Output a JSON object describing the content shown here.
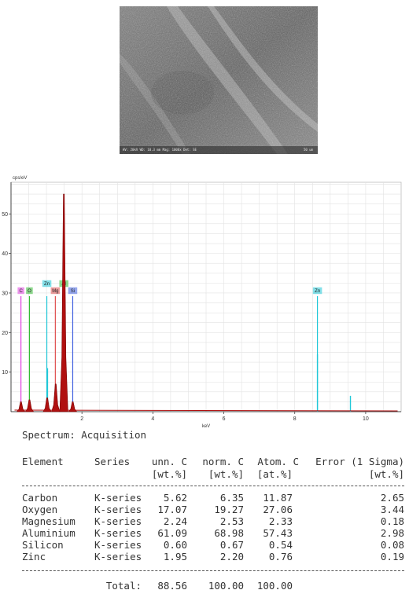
{
  "sem_image": {
    "info_text": "HV: 20kV  WD: 10.3 mm  Mag: 1000x  Det: SE",
    "scale_text": "50 um"
  },
  "chart_data": {
    "type": "line",
    "title": "",
    "ylabel": "cps/eV",
    "xlabel": "keV",
    "xlim": [
      0,
      11
    ],
    "ylim": [
      0,
      58
    ],
    "x_ticks": [
      "2",
      "4",
      "6",
      "8",
      "10"
    ],
    "y_ticks": [
      "10",
      "20",
      "30",
      "40",
      "50"
    ],
    "grid": true,
    "colors": {
      "spectrum": "#b01010",
      "zn": "#20c8d8",
      "o": "#33bb33",
      "c": "#e040e0",
      "mg": "#e05050",
      "al": "#33bb33",
      "si": "#4060e0"
    },
    "peaks": [
      {
        "x": 0.28,
        "y": 2.5
      },
      {
        "x": 0.52,
        "y": 3.0
      },
      {
        "x": 1.02,
        "y": 3.5
      },
      {
        "x": 1.26,
        "y": 7.0
      },
      {
        "x": 1.49,
        "y": 55.0
      },
      {
        "x": 1.74,
        "y": 2.5
      }
    ],
    "element_markers": [
      {
        "label": "C",
        "x": 0.28,
        "color": "#e040e0",
        "height": 30
      },
      {
        "label": "O",
        "x": 0.52,
        "color": "#33bb33",
        "height": 30
      },
      {
        "label": "Zn",
        "x": 1.01,
        "color": "#20c8d8",
        "height": 30
      },
      {
        "label": "Mg",
        "x": 1.25,
        "color": "#e05050",
        "height": 30
      },
      {
        "label": "Al",
        "x": 1.49,
        "color": "#33bb33",
        "height": 30
      },
      {
        "label": "Si",
        "x": 1.74,
        "color": "#4060e0",
        "height": 30
      },
      {
        "label": "Zn",
        "x": 8.64,
        "color": "#20c8d8",
        "height": 30
      }
    ],
    "minor_lines": [
      {
        "x": 1.03,
        "y": 11,
        "color": "#20c8d8"
      },
      {
        "x": 8.64,
        "y": 14.5,
        "color": "#20c8d8"
      },
      {
        "x": 9.57,
        "y": 4,
        "color": "#20c8d8"
      }
    ]
  },
  "table": {
    "title": "Spectrum: Acquisition",
    "headers": {
      "element": "Element",
      "series": "Series",
      "unn_c": "unn. C",
      "norm_c": "norm. C",
      "atom_c": "Atom. C",
      "error": "Error (1 Sigma)",
      "unit1": "[wt.%]",
      "unit2": "[wt.%]",
      "unit3": "[at.%]",
      "unit4": "[wt.%]"
    },
    "rows": [
      {
        "element": "Carbon",
        "series": "K-series",
        "unn": "5.62",
        "norm": "6.35",
        "atom": "11.87",
        "error": "2.65"
      },
      {
        "element": "Oxygen",
        "series": "K-series",
        "unn": "17.07",
        "norm": "19.27",
        "atom": "27.06",
        "error": "3.44"
      },
      {
        "element": "Magnesium",
        "series": "K-series",
        "unn": "2.24",
        "norm": "2.53",
        "atom": "2.33",
        "error": "0.18"
      },
      {
        "element": "Aluminium",
        "series": "K-series",
        "unn": "61.09",
        "norm": "68.98",
        "atom": "57.43",
        "error": "2.98"
      },
      {
        "element": "Silicon",
        "series": "K-series",
        "unn": "0.60",
        "norm": "0.67",
        "atom": "0.54",
        "error": "0.08"
      },
      {
        "element": "Zinc",
        "series": "K-series",
        "unn": "1.95",
        "norm": "2.20",
        "atom": "0.76",
        "error": "0.19"
      }
    ],
    "total": {
      "label": "Total:",
      "unn": "88.56",
      "norm": "100.00",
      "atom": "100.00"
    }
  }
}
